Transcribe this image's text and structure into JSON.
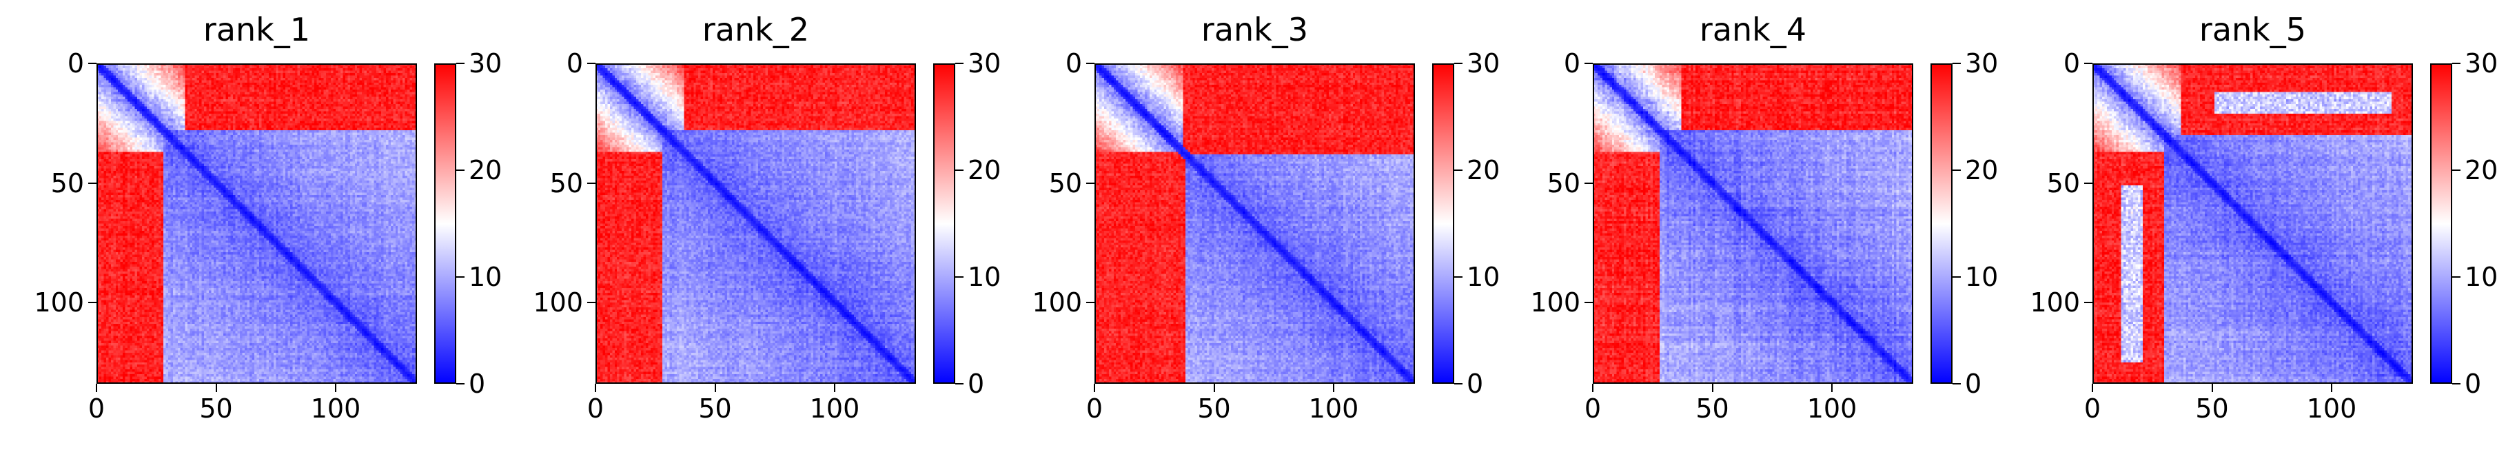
{
  "figure": {
    "colormap": [
      "#0000ff",
      "#ffffff",
      "#ff0000"
    ],
    "colorbar": {
      "min": 0,
      "max": 30,
      "ticks": [
        "0",
        "10",
        "20",
        "30"
      ],
      "tick_values": [
        0,
        10,
        20,
        30
      ]
    },
    "axis_ticks": {
      "labels": [
        "0",
        "50",
        "100"
      ],
      "values": [
        0,
        50,
        100
      ]
    }
  },
  "chart_data": [
    {
      "type": "heatmap",
      "title": "rank_1",
      "n": 134,
      "xlim": [
        0,
        134
      ],
      "ylim": [
        134,
        0
      ],
      "vmin": 0,
      "vmax": 30,
      "domain_boundary": 36,
      "left_edge": 28,
      "bulge": 8,
      "noise": 0.12
    },
    {
      "type": "heatmap",
      "title": "rank_2",
      "n": 134,
      "xlim": [
        0,
        134
      ],
      "ylim": [
        134,
        0
      ],
      "vmin": 0,
      "vmax": 30,
      "domain_boundary": 36,
      "left_edge": 28,
      "bulge": 8,
      "noise": 0.12
    },
    {
      "type": "heatmap",
      "title": "rank_3",
      "n": 134,
      "xlim": [
        0,
        134
      ],
      "ylim": [
        134,
        0
      ],
      "vmin": 0,
      "vmax": 30,
      "domain_boundary": 36,
      "left_edge": 38,
      "bulge": 8,
      "noise": 0.12
    },
    {
      "type": "heatmap",
      "title": "rank_4",
      "n": 134,
      "xlim": [
        0,
        134
      ],
      "ylim": [
        134,
        0
      ],
      "vmin": 0,
      "vmax": 30,
      "domain_boundary": 36,
      "left_edge": 28,
      "bulge": 6,
      "noise": 0.18
    },
    {
      "type": "heatmap",
      "title": "rank_5",
      "n": 134,
      "xlim": [
        0,
        134
      ],
      "ylim": [
        134,
        0
      ],
      "vmin": 0,
      "vmax": 30,
      "domain_boundary": 36,
      "left_edge": 30,
      "bulge": 4,
      "noise": 0.14,
      "inner_band": [
        12,
        20
      ]
    }
  ]
}
